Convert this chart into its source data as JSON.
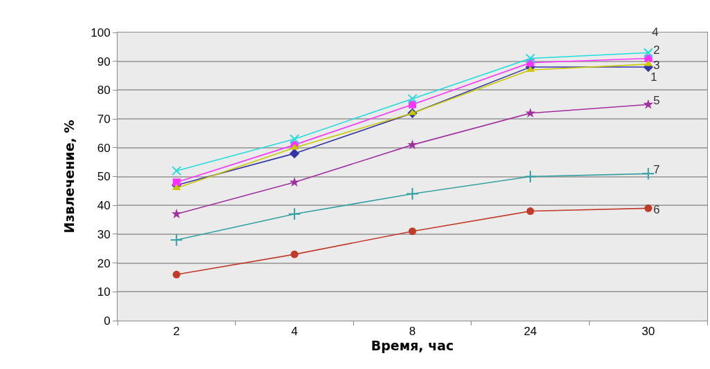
{
  "chart_data": {
    "type": "line",
    "xlabel": "Время, час",
    "ylabel": "Извлечение, %",
    "categories": [
      "2",
      "4",
      "8",
      "24",
      "30"
    ],
    "ylim": [
      0,
      100
    ],
    "yticks": [
      0,
      10,
      20,
      30,
      40,
      50,
      60,
      70,
      80,
      90,
      100
    ],
    "grid": "y",
    "legend": false,
    "series": [
      {
        "name": "1",
        "color": "#3333aa",
        "marker": "diamond",
        "values": [
          47,
          58,
          72,
          88,
          88
        ]
      },
      {
        "name": "2",
        "color": "#ff33ff",
        "marker": "square",
        "values": [
          48,
          61,
          75,
          89.5,
          91
        ]
      },
      {
        "name": "3",
        "color": "#c8c800",
        "marker": "triangle",
        "values": [
          46,
          60,
          72,
          87,
          89
        ]
      },
      {
        "name": "4",
        "color": "#22dddd",
        "marker": "cross",
        "values": [
          52,
          63,
          77,
          91,
          93
        ]
      },
      {
        "name": "5",
        "color": "#a030a0",
        "marker": "star",
        "values": [
          37,
          48,
          61,
          72,
          75
        ]
      },
      {
        "name": "6",
        "color": "#c23a2a",
        "marker": "circle",
        "values": [
          16,
          23,
          31,
          38,
          39
        ]
      },
      {
        "name": "7",
        "color": "#33a0a0",
        "marker": "cross",
        "values": [
          28,
          37,
          44,
          50,
          51
        ]
      }
    ]
  }
}
